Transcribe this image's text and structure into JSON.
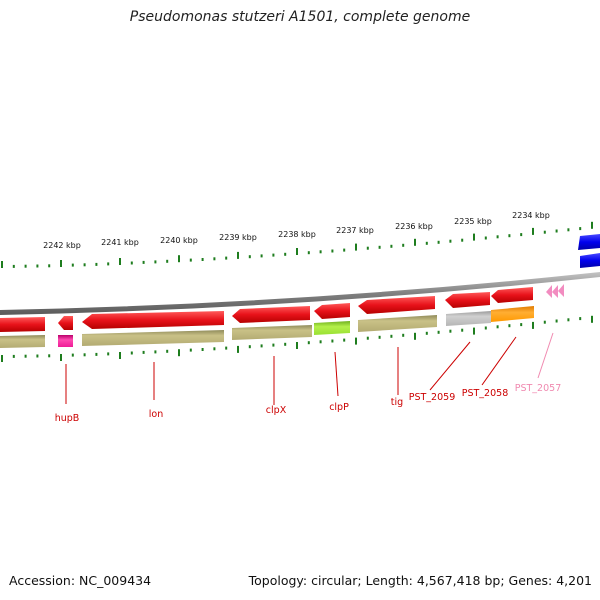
{
  "title": "Pseudomonas stutzeri A1501, complete genome",
  "accession": "Accession: NC_009434",
  "summary": "Topology: circular; Length: 4,567,418 bp; Genes: 4,201",
  "scale_labels": [
    "2242 kbp",
    "2241 kbp",
    "2240 kbp",
    "2239 kbp",
    "2238 kbp",
    "2237 kbp",
    "2236 kbp",
    "2235 kbp",
    "2234 kbp"
  ],
  "genes": [
    {
      "name": "hupB",
      "color": "#cc0000"
    },
    {
      "name": "lon",
      "color": "#cc0000"
    },
    {
      "name": "clpX",
      "color": "#cc0000"
    },
    {
      "name": "clpP",
      "color": "#cc0000"
    },
    {
      "name": "tig",
      "color": "#cc0000"
    },
    {
      "name": "PST_2059",
      "color": "#cc0000"
    },
    {
      "name": "PST_2058",
      "color": "#cc0000"
    },
    {
      "name": "PST_2057",
      "color": "#f08ab0"
    }
  ],
  "colors": {
    "gene_red": "#e8121a",
    "cog_olive": "#bdb57a",
    "hupB_magenta": "#ee1c96",
    "clpP_green": "#99e033",
    "pst2059_gray": "#bdbdbd",
    "pst2058_orange": "#ff9900",
    "pst2057_pink": "#f28cc0",
    "blue": "#0000ee",
    "tick_green": "#1e7d1e",
    "backbone": "#8a8a8a"
  }
}
